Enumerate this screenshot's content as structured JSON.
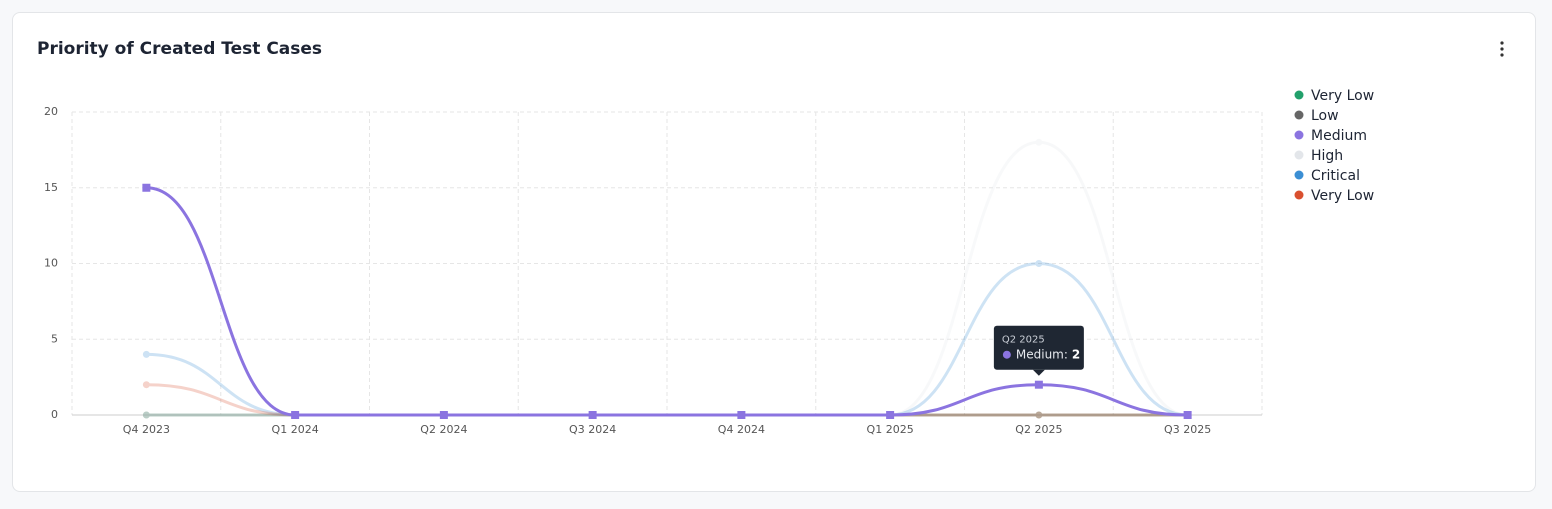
{
  "chart_data": {
    "type": "line",
    "title": "Priority of Created Test Cases",
    "categories": [
      "Q4 2023",
      "Q1 2024",
      "Q2 2024",
      "Q3 2024",
      "Q4 2024",
      "Q1 2025",
      "Q2 2025",
      "Q3 2025"
    ],
    "series": [
      {
        "name": "Very Low",
        "color": "#22a06b",
        "values": [
          0,
          0,
          0,
          0,
          0,
          0,
          0,
          0
        ]
      },
      {
        "name": "Low",
        "color": "#666666",
        "values": [
          0,
          0,
          0,
          0,
          0,
          0,
          0,
          0
        ]
      },
      {
        "name": "Medium",
        "color": "#8b74e0",
        "values": [
          15,
          0,
          0,
          0,
          0,
          0,
          2,
          0
        ]
      },
      {
        "name": "High",
        "color": "#e3e6ea",
        "values": [
          0,
          0,
          0,
          0,
          0,
          0,
          18,
          0
        ]
      },
      {
        "name": "Critical",
        "color": "#3b8fd4",
        "values": [
          4,
          0,
          0,
          0,
          0,
          0,
          10,
          0
        ]
      },
      {
        "name": "Very Low",
        "color": "#d9502f",
        "values": [
          2,
          0,
          0,
          0,
          0,
          0,
          0,
          0
        ]
      }
    ],
    "ylim": [
      0,
      20
    ],
    "yticks": [
      0,
      5,
      10,
      15,
      20
    ],
    "grid": true,
    "legend": "right",
    "tooltip": {
      "title": "Q2 2025",
      "label": "Medium:",
      "value": 2
    }
  }
}
